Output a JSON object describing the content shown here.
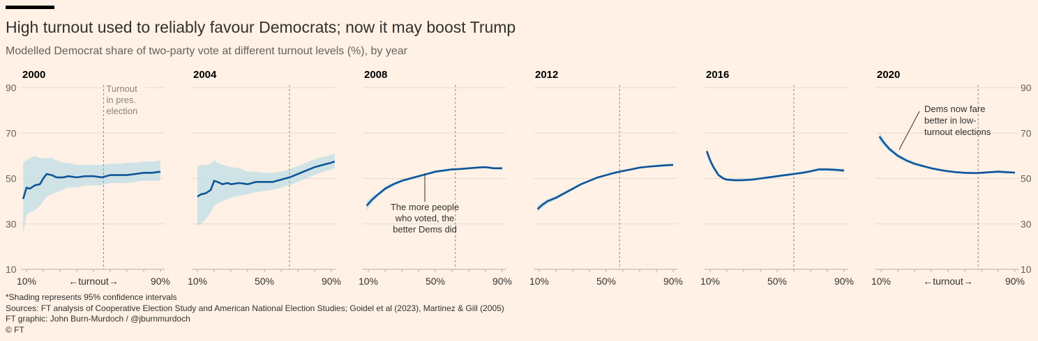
{
  "header": {
    "title": "High turnout used to reliably favour Democrats; now it may boost Trump",
    "subtitle": "Modelled Democrat share of two-party vote at different turnout levels (%), by year"
  },
  "footer": {
    "note": "*Shading represents 95% confidence intervals",
    "sources": "Sources: FT analysis of Cooperative Election Study and American National Election Studies; Goidel et al (2023), Martinez & Gill (2005)",
    "credit": "FT graphic: John Burn-Murdoch / @jburnmurdoch",
    "copyright": "© FT"
  },
  "colors": {
    "background": "#FFF1E5",
    "line": "#0F5499",
    "band": "#C3E0E6",
    "gridline": "#E6D9CE",
    "turnout_line": "#8A8480"
  },
  "chart_data": {
    "type": "line",
    "ylim": [
      10,
      90
    ],
    "xlim": [
      10,
      90
    ],
    "y_ticks": [
      10,
      30,
      50,
      70,
      90
    ],
    "x_tick_labels": [
      "10%",
      "50%",
      "90%"
    ],
    "x_tick_values": [
      10,
      50,
      90
    ],
    "x_turnout_axis_label": "←turnout→",
    "turnout_label": "Turnout in pres. election",
    "panels": [
      {
        "year": "2000",
        "turnout": 56,
        "x": [
          8,
          10,
          12,
          15,
          18,
          20,
          22,
          25,
          28,
          32,
          35,
          40,
          45,
          50,
          55,
          60,
          65,
          70,
          75,
          80,
          85,
          90
        ],
        "y": [
          41,
          46,
          45.5,
          47,
          47.5,
          50,
          52,
          51.5,
          50.5,
          50.5,
          51,
          50.5,
          51,
          51,
          50.5,
          51.5,
          51.5,
          51.5,
          52,
          52.5,
          52.5,
          53
        ],
        "lower": [
          25,
          34,
          35,
          36,
          38,
          40,
          42,
          43,
          44,
          45,
          46,
          46,
          47,
          47,
          47,
          48,
          48,
          48,
          48.5,
          49,
          49,
          49
        ],
        "upper": [
          57,
          58,
          59,
          60,
          59,
          59,
          59,
          59,
          58,
          57,
          57,
          56,
          56,
          56,
          56,
          56.5,
          56.5,
          57,
          57,
          57.5,
          57.5,
          58
        ]
      },
      {
        "year": "2004",
        "turnout": 65,
        "x": [
          10,
          12,
          15,
          18,
          20,
          22,
          25,
          28,
          30,
          35,
          40,
          45,
          50,
          55,
          60,
          65,
          70,
          75,
          80,
          85,
          90,
          92
        ],
        "y": [
          42,
          43,
          43.5,
          45,
          49,
          48.5,
          47.5,
          48,
          47.5,
          48,
          47.5,
          48.5,
          48.5,
          48.5,
          49.5,
          50.5,
          52,
          53.5,
          55,
          56,
          57,
          57.5
        ],
        "lower": [
          29,
          30,
          32,
          35,
          38,
          39,
          40,
          41,
          41.5,
          42.5,
          43,
          44,
          44.5,
          45,
          46,
          47,
          48.5,
          50,
          51.5,
          53,
          54,
          54.5
        ],
        "upper": [
          55,
          56,
          56,
          56.5,
          58,
          57,
          56,
          55.5,
          55,
          54.5,
          53,
          53,
          52.5,
          52.5,
          53,
          54,
          55.5,
          57,
          58.5,
          59.5,
          60.5,
          61
        ]
      },
      {
        "year": "2008",
        "turnout": 62,
        "x": [
          9,
          12,
          15,
          20,
          25,
          30,
          35,
          40,
          45,
          50,
          55,
          60,
          65,
          70,
          75,
          80,
          85,
          90
        ],
        "y": [
          38,
          40.5,
          42.5,
          45.5,
          47.5,
          49,
          50,
          51,
          52,
          53,
          53.5,
          54,
          54.2,
          54.5,
          54.8,
          55,
          54.5,
          54.5
        ],
        "lower": [
          36,
          39,
          41.5,
          44.5,
          46.7,
          48.3,
          49.3,
          50.4,
          51.4,
          52.4,
          53,
          53.5,
          53.7,
          54,
          54.3,
          54.5,
          54,
          53.8
        ],
        "upper": [
          40,
          42,
          43.5,
          46.5,
          48.3,
          49.7,
          50.7,
          51.6,
          52.6,
          53.6,
          54,
          54.5,
          54.7,
          55,
          55.3,
          55.5,
          55,
          55.2
        ]
      },
      {
        "year": "2012",
        "turnout": 58,
        "x": [
          9,
          12,
          15,
          20,
          25,
          30,
          35,
          40,
          45,
          50,
          55,
          60,
          65,
          70,
          75,
          80,
          85,
          90
        ],
        "y": [
          36.5,
          38.5,
          40,
          41.5,
          43.5,
          45.5,
          47.5,
          49,
          50.5,
          51.5,
          52.5,
          53.3,
          54,
          54.8,
          55.2,
          55.5,
          55.8,
          56
        ],
        "lower": [
          35,
          37.3,
          39,
          40.6,
          42.7,
          44.8,
          46.9,
          48.5,
          50,
          51,
          52,
          52.8,
          53.5,
          54.3,
          54.7,
          55,
          55.2,
          55.3
        ],
        "upper": [
          38,
          39.7,
          41,
          42.4,
          44.3,
          46.2,
          48.1,
          49.5,
          51,
          52,
          53,
          53.8,
          54.5,
          55.3,
          55.7,
          56,
          56.4,
          56.7
        ]
      },
      {
        "year": "2016",
        "turnout": 60,
        "x": [
          8,
          10,
          12,
          15,
          18,
          20,
          25,
          30,
          35,
          40,
          45,
          50,
          55,
          60,
          65,
          70,
          75,
          80,
          85,
          90
        ],
        "y": [
          62,
          58,
          55,
          51.5,
          50,
          49.5,
          49.2,
          49.3,
          49.5,
          50,
          50.5,
          51,
          51.5,
          52,
          52.5,
          53.2,
          54,
          54,
          53.8,
          53.5
        ],
        "lower": [
          60,
          56.5,
          53.8,
          50.6,
          49.2,
          48.8,
          48.6,
          48.7,
          48.9,
          49.4,
          49.9,
          50.4,
          50.9,
          51.4,
          51.9,
          52.6,
          53.3,
          53.3,
          53,
          52.6
        ],
        "upper": [
          64,
          59.5,
          56.2,
          52.4,
          50.8,
          50.2,
          49.8,
          49.9,
          50.1,
          50.6,
          51.1,
          51.6,
          52.1,
          52.6,
          53.1,
          53.8,
          54.7,
          54.7,
          54.6,
          54.4
        ]
      },
      {
        "year": "2020",
        "turnout": 68,
        "x": [
          9,
          12,
          15,
          20,
          25,
          30,
          35,
          40,
          45,
          50,
          55,
          60,
          65,
          70,
          75,
          80,
          85,
          90
        ],
        "y": [
          68.5,
          65.5,
          63,
          60,
          58,
          56.5,
          55.5,
          54.5,
          53.8,
          53.2,
          52.8,
          52.5,
          52.4,
          52.5,
          52.8,
          53,
          52.8,
          52.6
        ],
        "lower": [
          66.5,
          64,
          61.8,
          59,
          57.1,
          55.7,
          54.8,
          53.9,
          53.2,
          52.7,
          52.3,
          52,
          51.9,
          52,
          52.3,
          52.4,
          52.2,
          52
        ],
        "upper": [
          70.5,
          67,
          64.2,
          61,
          58.9,
          57.3,
          56.2,
          55.1,
          54.4,
          53.7,
          53.3,
          53,
          52.9,
          53,
          53.3,
          53.6,
          53.4,
          53.2
        ]
      }
    ],
    "annotations": [
      {
        "panel": "2008",
        "lines": [
          "The more people",
          "who voted, the",
          "better Dems did"
        ]
      },
      {
        "panel": "2020",
        "lines": [
          "Dems now fare",
          "better in low-",
          "turnout elections"
        ]
      }
    ]
  }
}
